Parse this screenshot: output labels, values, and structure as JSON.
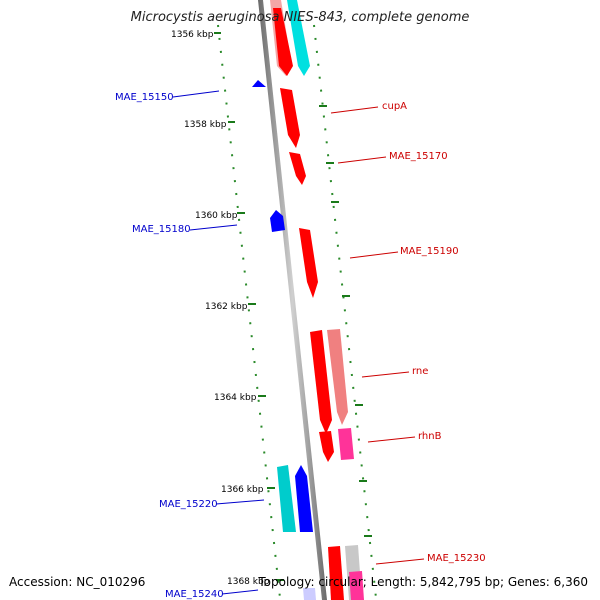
{
  "title": "Microcystis aeruginosa NIES-843, complete genome",
  "footer": {
    "accession": "Accession: NC_010296",
    "topology": "Topology: circular; Length: 5,842,795 bp; Genes: 6,360"
  },
  "ticks": [
    "1356 kbp",
    "1358 kbp",
    "1360 kbp",
    "1362 kbp",
    "1364 kbp",
    "1366 kbp",
    "1368 kbp"
  ],
  "genes_right": [
    "cupA",
    "MAE_15170",
    "MAE_15190",
    "rne",
    "rhnB",
    "MAE_15230"
  ],
  "genes_left": [
    "MAE_15150",
    "MAE_15180",
    "MAE_15220",
    "MAE_15240"
  ],
  "colors": {
    "forward": "#ff0000",
    "reverse": "#0000ff",
    "cyan": "#00d8d8",
    "pink": "#ff3399",
    "salmon": "#f08080",
    "gray": "#c8c8c8",
    "right_label": "#cc0000",
    "left_label": "#0000cc",
    "dotted": "#228b22"
  }
}
